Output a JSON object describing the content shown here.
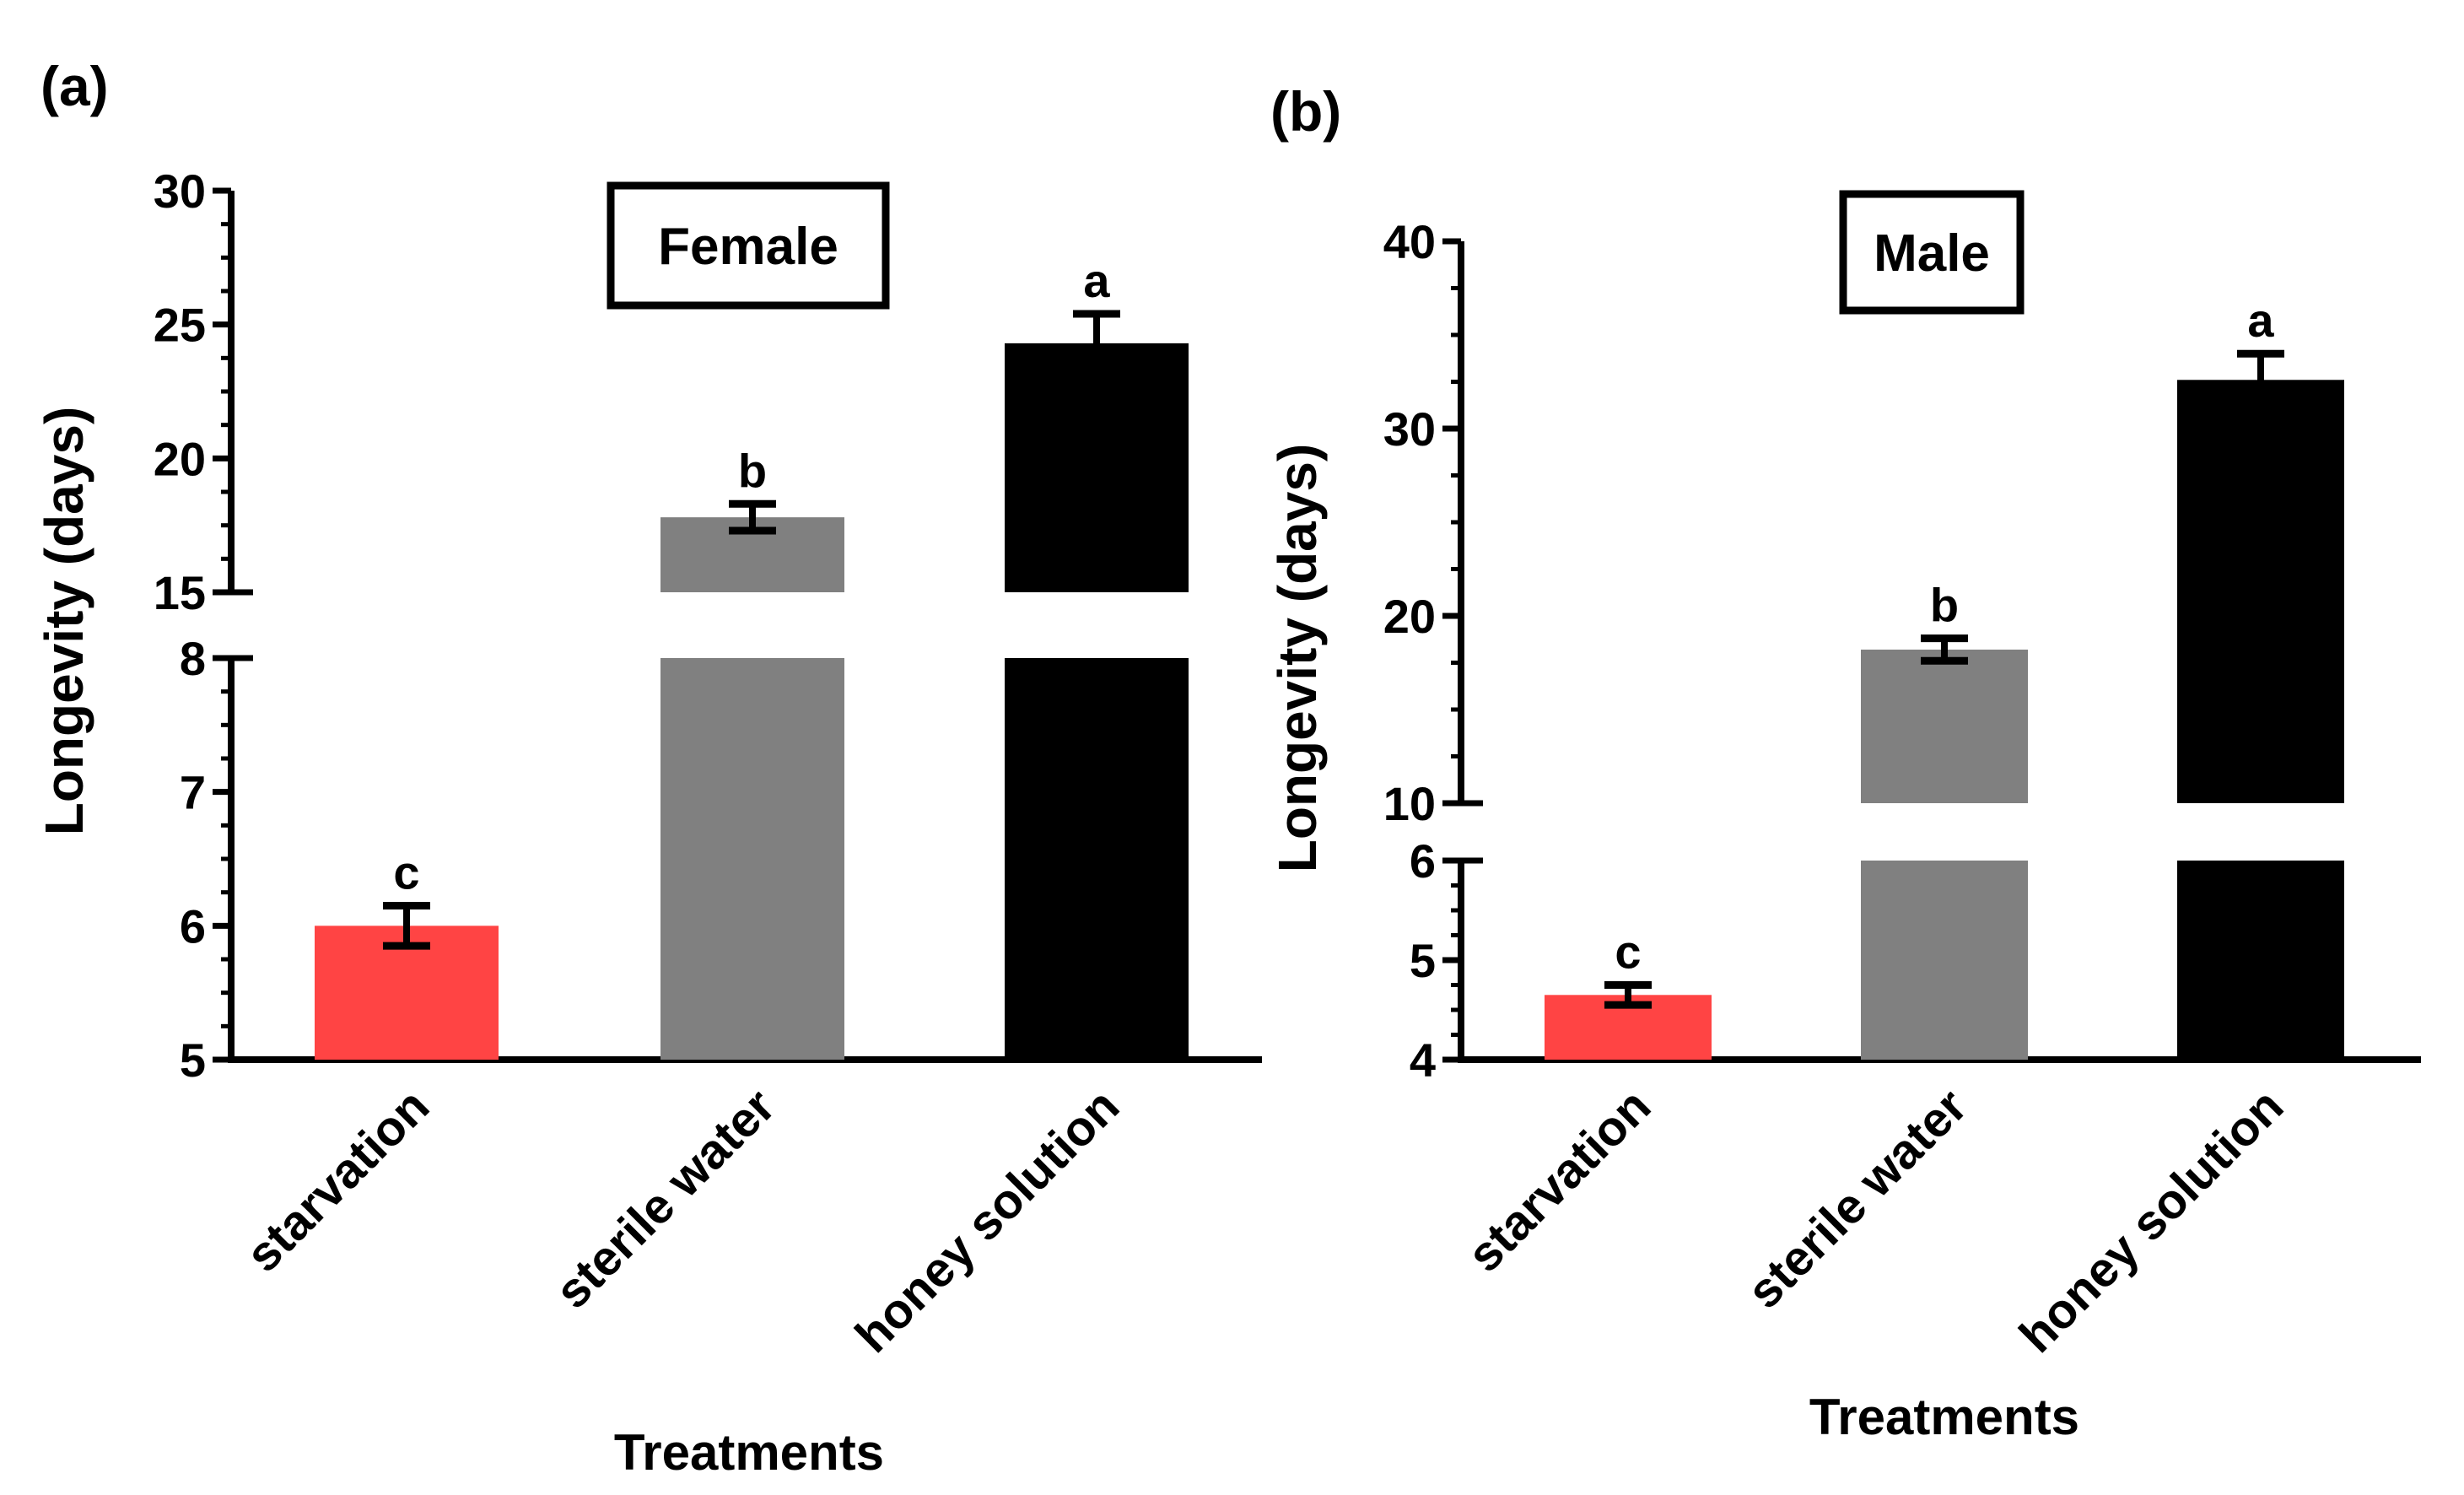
{
  "chart_data": [
    {
      "panel_label": "(a)",
      "type": "bar",
      "box_title": "Female",
      "ylabel": "Longevity (days)",
      "xlabel": "Treatments",
      "categories": [
        "starvation",
        "sterile water",
        "honey solution"
      ],
      "values": [
        6.0,
        17.8,
        24.3
      ],
      "errors": [
        0.15,
        0.5,
        1.1
      ],
      "significance": [
        "c",
        "b",
        "a"
      ],
      "colors": [
        "#ff4444",
        "#808080",
        "#000000"
      ],
      "y_segments": [
        {
          "range": [
            5,
            8
          ],
          "ticks": [
            "5",
            "6",
            "7",
            "8"
          ]
        },
        {
          "range": [
            15,
            30
          ],
          "ticks": [
            "15",
            "20",
            "25",
            "30"
          ]
        }
      ]
    },
    {
      "panel_label": "(b)",
      "type": "bar",
      "box_title": "Male",
      "ylabel": "Longevity (days)",
      "xlabel": "Treatments",
      "categories": [
        "starvation",
        "sterile water",
        "honey solution"
      ],
      "values": [
        4.65,
        18.2,
        32.6
      ],
      "errors": [
        0.1,
        0.6,
        1.4
      ],
      "significance": [
        "c",
        "b",
        "a"
      ],
      "colors": [
        "#ff4444",
        "#808080",
        "#000000"
      ],
      "y_segments": [
        {
          "range": [
            4,
            6
          ],
          "ticks": [
            "4",
            "5",
            "6"
          ]
        },
        {
          "range": [
            10,
            40
          ],
          "ticks": [
            "10",
            "20",
            "30",
            "40"
          ]
        }
      ]
    }
  ]
}
